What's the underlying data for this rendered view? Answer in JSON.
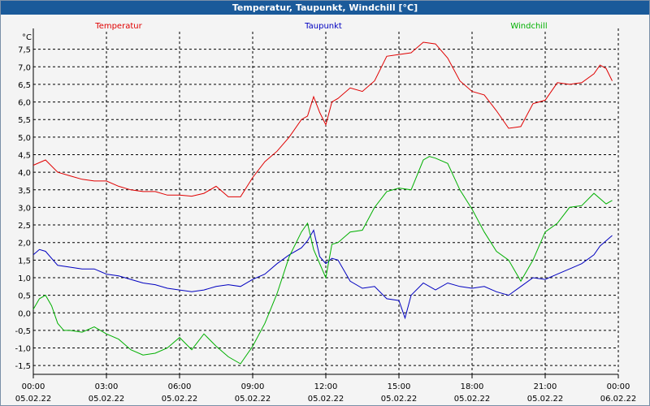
{
  "window": {
    "title": "Temperatur, Taupunkt, Windchill [°C]"
  },
  "colors": {
    "temperatur": "#e00000",
    "taupunkt": "#0000c0",
    "windchill": "#00b000",
    "grid": "#000000",
    "titlebar": "#1a5a9a"
  },
  "chart_data": {
    "type": "line",
    "title": "Temperatur, Taupunkt, Windchill [°C]",
    "ylabel": "°C",
    "ylim": [
      -1.75,
      8.0
    ],
    "yticks": [
      -1.5,
      -1.0,
      -0.5,
      0.0,
      0.5,
      1.0,
      1.5,
      2.0,
      2.5,
      3.0,
      3.5,
      4.0,
      4.5,
      5.0,
      5.5,
      6.0,
      6.5,
      7.0,
      7.5
    ],
    "ytick_labels": [
      "-1,5",
      "-1,0",
      "-0,5",
      "0,0",
      "0,5",
      "1,0",
      "1,5",
      "2,0",
      "2,5",
      "3,0",
      "3,5",
      "4,0",
      "4,5",
      "5,0",
      "5,5",
      "6,0",
      "6,5",
      "7,0",
      "7,5"
    ],
    "xlim": [
      0,
      24
    ],
    "xticks": [
      0,
      3,
      6,
      9,
      12,
      15,
      18,
      21,
      24
    ],
    "xtick_times": [
      "00:00",
      "03:00",
      "06:00",
      "09:00",
      "12:00",
      "15:00",
      "18:00",
      "21:00",
      "00:00"
    ],
    "xtick_dates": [
      "05.02.22",
      "05.02.22",
      "05.02.22",
      "05.02.22",
      "05.02.22",
      "05.02.22",
      "05.02.22",
      "05.02.22",
      "06.02.22"
    ],
    "grid": true,
    "series": [
      {
        "name": "Temperatur",
        "key": "temperatur",
        "x": [
          0,
          0.5,
          1,
          1.5,
          2,
          2.5,
          3,
          3.5,
          4,
          4.5,
          5,
          5.5,
          6,
          6.5,
          7,
          7.5,
          8,
          8.5,
          9,
          9.5,
          10,
          10.5,
          11,
          11.25,
          11.5,
          11.75,
          12,
          12.25,
          12.5,
          13,
          13.5,
          14,
          14.5,
          15,
          15.5,
          16,
          16.5,
          17,
          17.5,
          18,
          18.5,
          19,
          19.5,
          20,
          20.5,
          21,
          21.5,
          22,
          22.5,
          23,
          23.25,
          23.5,
          23.75
        ],
        "values": [
          4.2,
          4.35,
          4.0,
          3.9,
          3.8,
          3.75,
          3.75,
          3.6,
          3.5,
          3.45,
          3.45,
          3.35,
          3.35,
          3.32,
          3.4,
          3.6,
          3.3,
          3.3,
          3.85,
          4.3,
          4.6,
          5.0,
          5.5,
          5.6,
          6.15,
          5.7,
          5.35,
          6.0,
          6.1,
          6.4,
          6.3,
          6.6,
          7.3,
          7.35,
          7.4,
          7.7,
          7.65,
          7.25,
          6.6,
          6.3,
          6.2,
          5.75,
          5.25,
          5.3,
          5.95,
          6.05,
          6.55,
          6.5,
          6.55,
          6.8,
          7.05,
          6.95,
          6.6
        ]
      },
      {
        "name": "Taupunkt",
        "key": "taupunkt",
        "x": [
          0,
          0.25,
          0.5,
          1,
          1.5,
          2,
          2.5,
          3,
          3.5,
          4,
          4.5,
          5,
          5.5,
          6,
          6.5,
          7,
          7.5,
          8,
          8.5,
          9,
          9.5,
          10,
          10.5,
          11,
          11.25,
          11.5,
          11.75,
          12,
          12.25,
          12.5,
          13,
          13.5,
          14,
          14.5,
          15,
          15.25,
          15.5,
          16,
          16.5,
          17,
          17.5,
          18,
          18.5,
          19,
          19.5,
          20,
          20.5,
          21,
          21.5,
          22,
          22.5,
          23,
          23.25,
          23.5,
          23.75
        ],
        "values": [
          1.65,
          1.8,
          1.75,
          1.35,
          1.3,
          1.25,
          1.25,
          1.1,
          1.05,
          0.95,
          0.85,
          0.8,
          0.7,
          0.65,
          0.6,
          0.65,
          0.75,
          0.8,
          0.75,
          0.95,
          1.1,
          1.4,
          1.65,
          1.85,
          2.05,
          2.35,
          1.6,
          1.4,
          1.55,
          1.5,
          0.9,
          0.7,
          0.75,
          0.4,
          0.35,
          -0.15,
          0.5,
          0.85,
          0.65,
          0.85,
          0.75,
          0.7,
          0.75,
          0.6,
          0.5,
          0.75,
          1.0,
          0.95,
          1.1,
          1.25,
          1.4,
          1.65,
          1.9,
          2.05,
          2.2
        ]
      },
      {
        "name": "Windchill",
        "key": "windchill",
        "x": [
          0,
          0.25,
          0.5,
          0.75,
          1,
          1.25,
          1.5,
          2,
          2.5,
          3,
          3.5,
          4,
          4.5,
          5,
          5.5,
          6,
          6.5,
          7,
          7.5,
          8,
          8.5,
          9,
          9.5,
          10,
          10.5,
          11,
          11.25,
          11.5,
          11.75,
          12,
          12.25,
          12.5,
          13,
          13.5,
          14,
          14.5,
          15,
          15.5,
          16,
          16.25,
          16.5,
          17,
          17.5,
          18,
          18.5,
          19,
          19.5,
          20,
          20.5,
          21,
          21.5,
          22,
          22.5,
          23,
          23.5,
          23.75
        ],
        "values": [
          0.1,
          0.4,
          0.5,
          0.2,
          -0.3,
          -0.5,
          -0.5,
          -0.55,
          -0.4,
          -0.6,
          -0.75,
          -1.05,
          -1.2,
          -1.15,
          -1.0,
          -0.7,
          -1.05,
          -0.6,
          -0.95,
          -1.25,
          -1.45,
          -0.95,
          -0.3,
          0.55,
          1.6,
          2.3,
          2.55,
          1.8,
          1.4,
          1.0,
          1.95,
          2.0,
          2.3,
          2.35,
          3.0,
          3.45,
          3.55,
          3.5,
          4.35,
          4.45,
          4.4,
          4.25,
          3.5,
          2.95,
          2.3,
          1.75,
          1.5,
          0.9,
          1.5,
          2.3,
          2.55,
          3.0,
          3.05,
          3.4,
          3.1,
          3.2
        ]
      }
    ]
  }
}
